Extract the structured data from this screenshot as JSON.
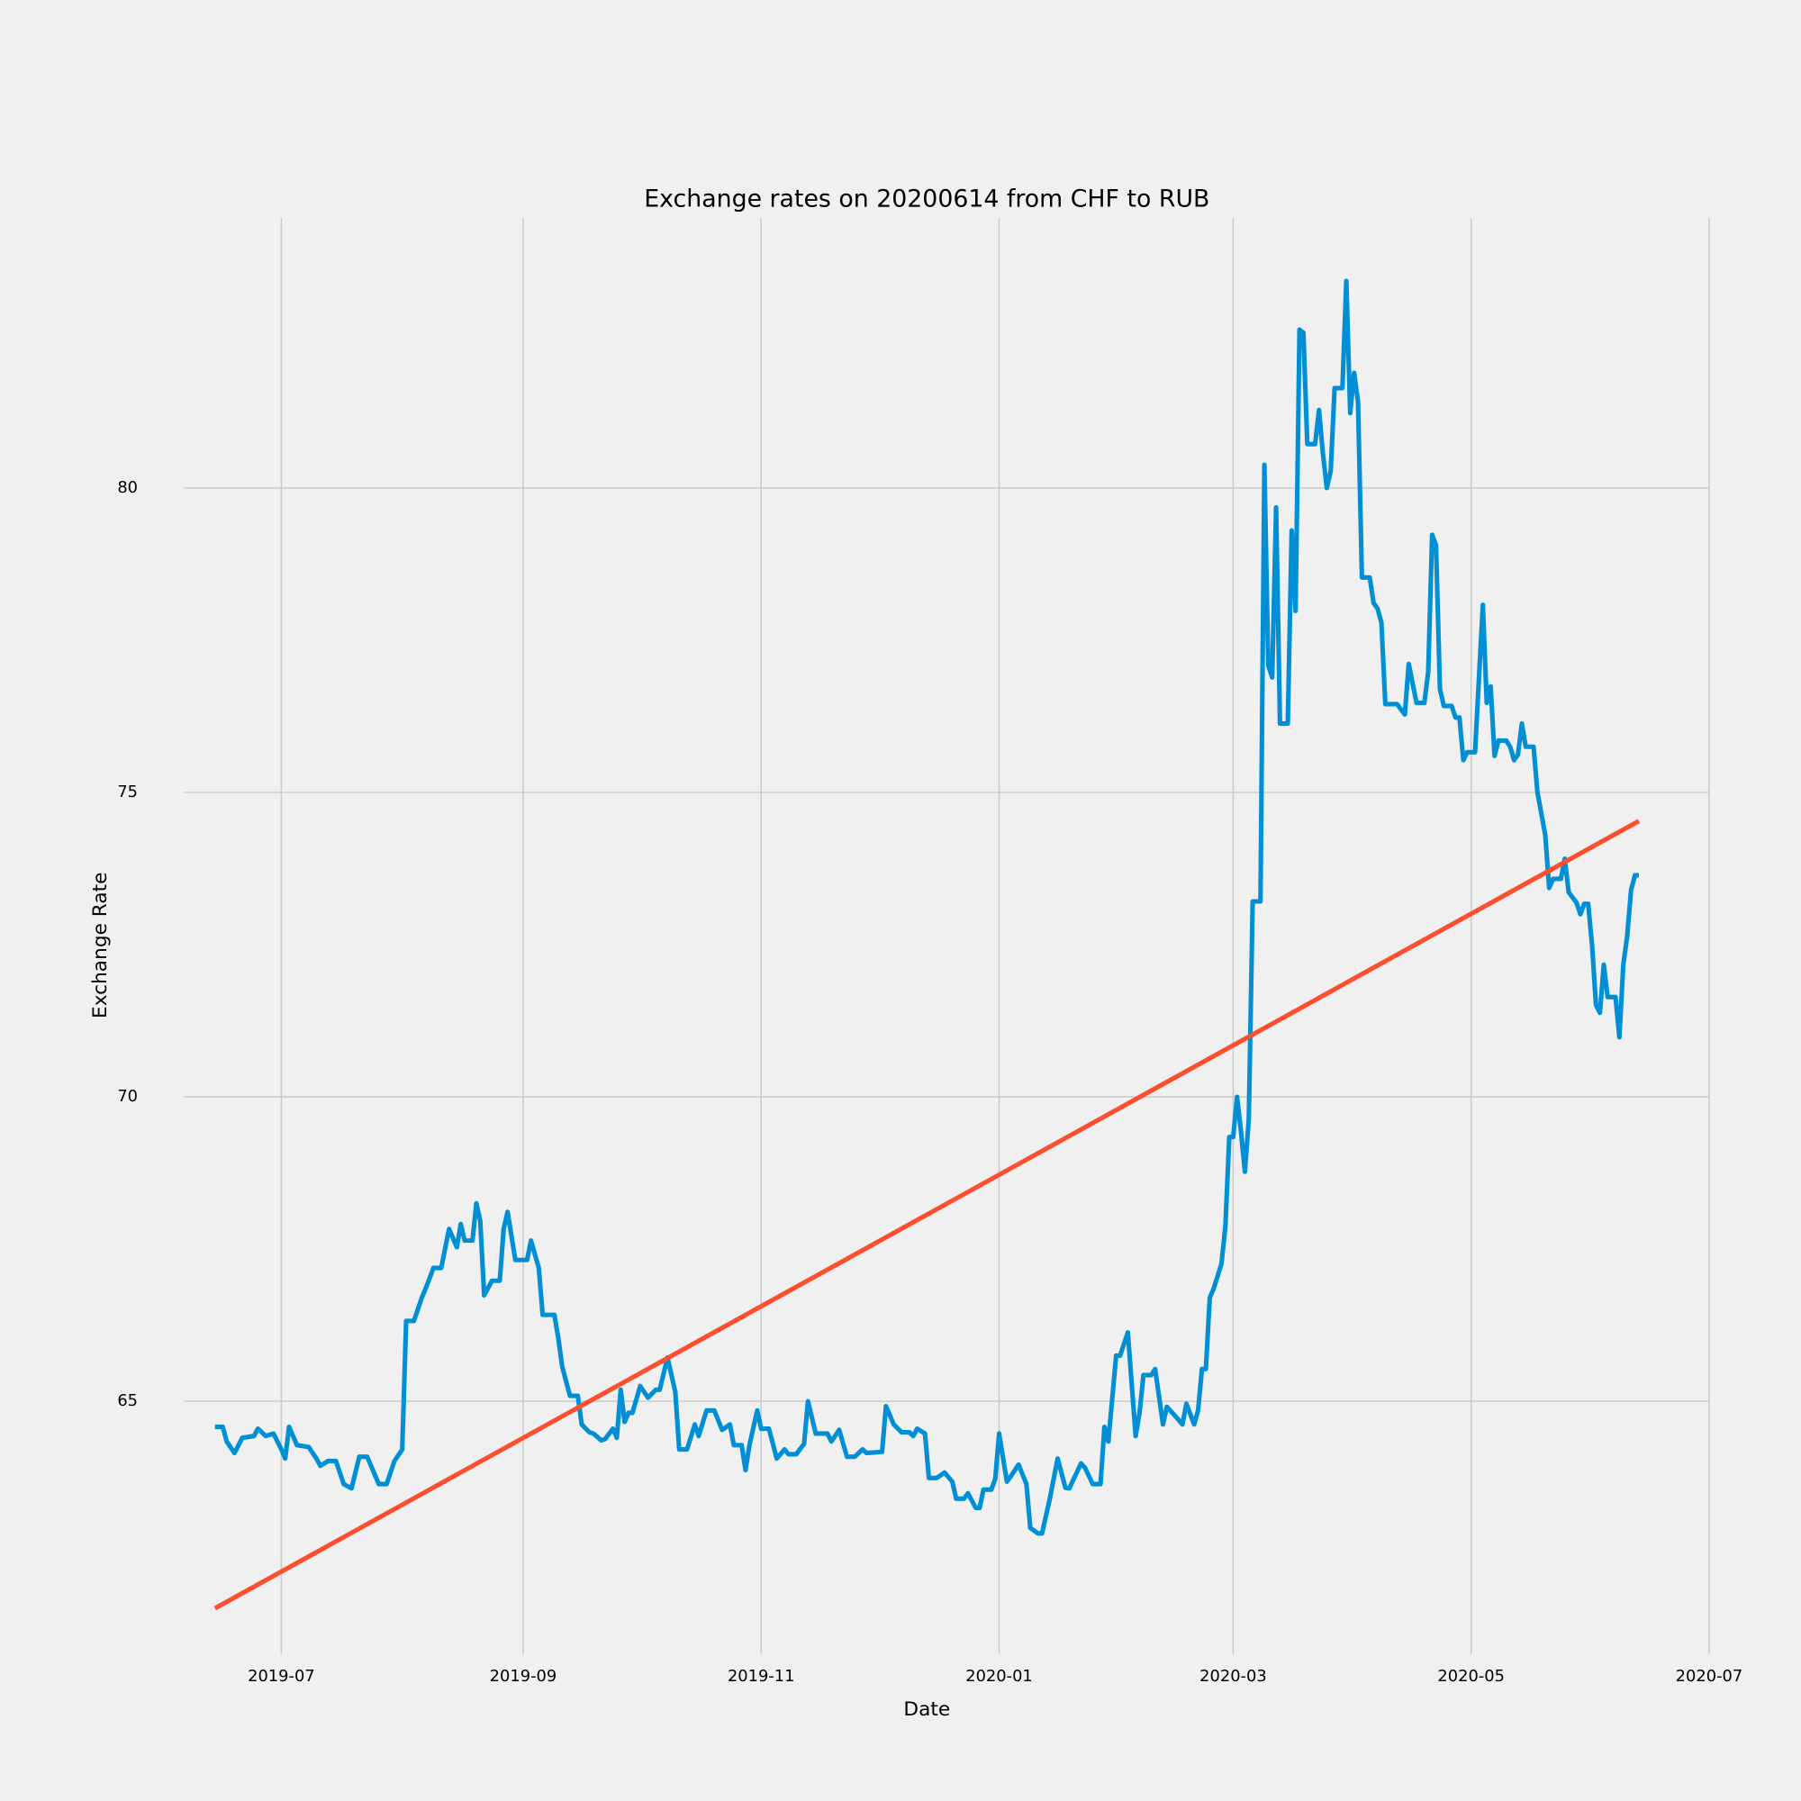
{
  "chart_data": {
    "type": "line",
    "title": "Exchange rates on 20200614 from CHF to RUB",
    "x_label": "Date",
    "y_label": "Exchange Rate",
    "grid": true,
    "xlim": [
      "2019-06-06",
      "2020-07-01"
    ],
    "xticks": [
      {
        "value": "2019-07-01",
        "label": "2019-07"
      },
      {
        "value": "2019-09-01",
        "label": "2019-09"
      },
      {
        "value": "2019-11-01",
        "label": "2019-11"
      },
      {
        "value": "2020-01-01",
        "label": "2020-01"
      },
      {
        "value": "2020-03-01",
        "label": "2020-03"
      },
      {
        "value": "2020-05-01",
        "label": "2020-05"
      },
      {
        "value": "2020-07-01",
        "label": "2020-07"
      }
    ],
    "ylim": [
      60.85,
      84.43
    ],
    "yticks": [
      65,
      70,
      75,
      80
    ],
    "series": [
      {
        "color": "#008fd5",
        "x": [
          "2019-06-14",
          "2019-06-16",
          "2019-06-17",
          "2019-06-19",
          "2019-06-21",
          "2019-06-24",
          "2019-06-25",
          "2019-06-27",
          "2019-06-29",
          "2019-07-01",
          "2019-07-02",
          "2019-07-03",
          "2019-07-05",
          "2019-07-08",
          "2019-07-10",
          "2019-07-11",
          "2019-07-13",
          "2019-07-15",
          "2019-07-17",
          "2019-07-19",
          "2019-07-21",
          "2019-07-23",
          "2019-07-26",
          "2019-07-28",
          "2019-07-30",
          "2019-08-01",
          "2019-08-02",
          "2019-08-04",
          "2019-08-06",
          "2019-08-07",
          "2019-08-09",
          "2019-08-11",
          "2019-08-13",
          "2019-08-15",
          "2019-08-16",
          "2019-08-17",
          "2019-08-19",
          "2019-08-20",
          "2019-08-21",
          "2019-08-22",
          "2019-08-24",
          "2019-08-26",
          "2019-08-27",
          "2019-08-28",
          "2019-08-30",
          "2019-09-02",
          "2019-09-03",
          "2019-09-05",
          "2019-09-06",
          "2019-09-09",
          "2019-09-10",
          "2019-09-11",
          "2019-09-13",
          "2019-09-15",
          "2019-09-16",
          "2019-09-18",
          "2019-09-19",
          "2019-09-21",
          "2019-09-22",
          "2019-09-24",
          "2019-09-25",
          "2019-09-26",
          "2019-09-27",
          "2019-09-28",
          "2019-09-29",
          "2019-10-01",
          "2019-10-03",
          "2019-10-05",
          "2019-10-06",
          "2019-10-08",
          "2019-10-10",
          "2019-10-11",
          "2019-10-13",
          "2019-10-15",
          "2019-10-16",
          "2019-10-18",
          "2019-10-20",
          "2019-10-22",
          "2019-10-24",
          "2019-10-25",
          "2019-10-27",
          "2019-10-28",
          "2019-10-29",
          "2019-10-31",
          "2019-11-01",
          "2019-11-03",
          "2019-11-05",
          "2019-11-07",
          "2019-11-08",
          "2019-11-10",
          "2019-11-12",
          "2019-11-13",
          "2019-11-15",
          "2019-11-18",
          "2019-11-19",
          "2019-11-21",
          "2019-11-23",
          "2019-11-25",
          "2019-11-27",
          "2019-11-28",
          "2019-12-02",
          "2019-12-03",
          "2019-12-05",
          "2019-12-07",
          "2019-12-09",
          "2019-12-10",
          "2019-12-11",
          "2019-12-13",
          "2019-12-14",
          "2019-12-16",
          "2019-12-18",
          "2019-12-20",
          "2019-12-21",
          "2019-12-23",
          "2019-12-24",
          "2019-12-26",
          "2019-12-27",
          "2019-12-28",
          "2019-12-30",
          "2019-12-31",
          "2020-01-01",
          "2020-01-03",
          "2020-01-04",
          "2020-01-06",
          "2020-01-08",
          "2020-01-09",
          "2020-01-11",
          "2020-01-12",
          "2020-01-14",
          "2020-01-16",
          "2020-01-18",
          "2020-01-19",
          "2020-01-22",
          "2020-01-23",
          "2020-01-25",
          "2020-01-27",
          "2020-01-28",
          "2020-01-29",
          "2020-01-31",
          "2020-02-01",
          "2020-02-03",
          "2020-02-05",
          "2020-02-06",
          "2020-02-07",
          "2020-02-09",
          "2020-02-10",
          "2020-02-12",
          "2020-02-13",
          "2020-02-15",
          "2020-02-17",
          "2020-02-18",
          "2020-02-20",
          "2020-02-21",
          "2020-02-22",
          "2020-02-23",
          "2020-02-24",
          "2020-02-25",
          "2020-02-27",
          "2020-02-28",
          "2020-02-29",
          "2020-03-01",
          "2020-03-02",
          "2020-03-03",
          "2020-03-04",
          "2020-03-05",
          "2020-03-06",
          "2020-03-08",
          "2020-03-09",
          "2020-03-10",
          "2020-03-11",
          "2020-03-12",
          "2020-03-13",
          "2020-03-15",
          "2020-03-16",
          "2020-03-17",
          "2020-03-18",
          "2020-03-19",
          "2020-03-20",
          "2020-03-22",
          "2020-03-23",
          "2020-03-24",
          "2020-03-25",
          "2020-03-26",
          "2020-03-27",
          "2020-03-29",
          "2020-03-30",
          "2020-03-31",
          "2020-04-01",
          "2020-04-02",
          "2020-04-03",
          "2020-04-05",
          "2020-04-06",
          "2020-04-07",
          "2020-04-08",
          "2020-04-09",
          "2020-04-12",
          "2020-04-14",
          "2020-04-15",
          "2020-04-17",
          "2020-04-19",
          "2020-04-20",
          "2020-04-21",
          "2020-04-22",
          "2020-04-23",
          "2020-04-24",
          "2020-04-26",
          "2020-04-27",
          "2020-04-28",
          "2020-04-29",
          "2020-04-30",
          "2020-05-02",
          "2020-05-04",
          "2020-05-05",
          "2020-05-06",
          "2020-05-07",
          "2020-05-08",
          "2020-05-10",
          "2020-05-11",
          "2020-05-12",
          "2020-05-13",
          "2020-05-14",
          "2020-05-15",
          "2020-05-17",
          "2020-05-18",
          "2020-05-20",
          "2020-05-21",
          "2020-05-22",
          "2020-05-24",
          "2020-05-25",
          "2020-05-26",
          "2020-05-28",
          "2020-05-29",
          "2020-05-30",
          "2020-05-31",
          "2020-06-01",
          "2020-06-02",
          "2020-06-03",
          "2020-06-04",
          "2020-06-05",
          "2020-06-07",
          "2020-06-08",
          "2020-06-09",
          "2020-06-10",
          "2020-06-11",
          "2020-06-12",
          "2020-06-13"
        ],
        "values": [
          64.58,
          64.58,
          64.34,
          64.15,
          64.4,
          64.43,
          64.55,
          64.43,
          64.47,
          64.21,
          64.06,
          64.58,
          64.28,
          64.25,
          64.06,
          63.94,
          64.02,
          64.02,
          63.64,
          63.57,
          64.09,
          64.09,
          63.64,
          63.64,
          64.02,
          64.21,
          66.32,
          66.32,
          66.7,
          66.85,
          67.19,
          67.19,
          67.83,
          67.53,
          67.91,
          67.64,
          67.64,
          68.25,
          67.96,
          66.74,
          66.98,
          66.98,
          67.83,
          68.11,
          67.32,
          67.32,
          67.64,
          67.19,
          66.42,
          66.42,
          66.04,
          65.57,
          65.09,
          65.09,
          64.62,
          64.49,
          64.47,
          64.36,
          64.38,
          64.55,
          64.4,
          65.19,
          64.66,
          64.81,
          64.81,
          65.25,
          65.06,
          65.19,
          65.19,
          65.72,
          65.15,
          64.21,
          64.21,
          64.62,
          64.43,
          64.85,
          64.85,
          64.53,
          64.62,
          64.28,
          64.28,
          63.87,
          64.28,
          64.85,
          64.55,
          64.55,
          64.06,
          64.21,
          64.13,
          64.13,
          64.3,
          65.0,
          64.47,
          64.47,
          64.34,
          64.53,
          64.09,
          64.09,
          64.21,
          64.15,
          64.17,
          64.92,
          64.62,
          64.49,
          64.49,
          64.43,
          64.55,
          64.47,
          63.74,
          63.74,
          63.83,
          63.68,
          63.4,
          63.4,
          63.49,
          63.25,
          63.25,
          63.55,
          63.55,
          63.72,
          64.47,
          63.68,
          63.77,
          63.96,
          63.64,
          62.92,
          62.83,
          62.83,
          63.4,
          64.06,
          63.58,
          63.57,
          63.98,
          63.91,
          63.64,
          63.64,
          64.58,
          64.34,
          65.75,
          65.75,
          66.13,
          64.43,
          64.81,
          65.43,
          65.43,
          65.53,
          64.62,
          64.91,
          64.77,
          64.62,
          64.96,
          64.62,
          64.85,
          65.53,
          65.53,
          66.7,
          66.85,
          67.26,
          67.87,
          69.34,
          69.34,
          70.0,
          69.43,
          68.77,
          69.62,
          73.21,
          73.21,
          80.38,
          77.08,
          76.89,
          79.68,
          76.13,
          76.13,
          79.3,
          77.98,
          82.6,
          82.55,
          80.72,
          80.72,
          81.28,
          80.57,
          80.0,
          80.28,
          81.64,
          81.64,
          83.4,
          81.23,
          81.89,
          81.42,
          78.53,
          78.53,
          78.11,
          78.02,
          77.79,
          76.45,
          76.45,
          76.28,
          77.11,
          76.47,
          76.47,
          76.98,
          79.23,
          79.06,
          76.7,
          76.42,
          76.42,
          76.23,
          76.23,
          75.53,
          75.66,
          75.66,
          78.08,
          76.47,
          76.74,
          75.6,
          75.85,
          75.85,
          75.75,
          75.53,
          75.62,
          76.13,
          75.75,
          75.75,
          75.0,
          74.3,
          73.43,
          73.58,
          73.58,
          73.91,
          73.36,
          73.19,
          73.0,
          73.17,
          73.17,
          72.49,
          71.51,
          71.38,
          72.17,
          71.64,
          71.64,
          70.98,
          72.17,
          72.64,
          73.4,
          73.64,
          73.64
        ]
      },
      {
        "color": "#fc4f30",
        "x": [
          "2019-06-14",
          "2020-06-13"
        ],
        "values": [
          61.6,
          74.53
        ]
      }
    ]
  }
}
